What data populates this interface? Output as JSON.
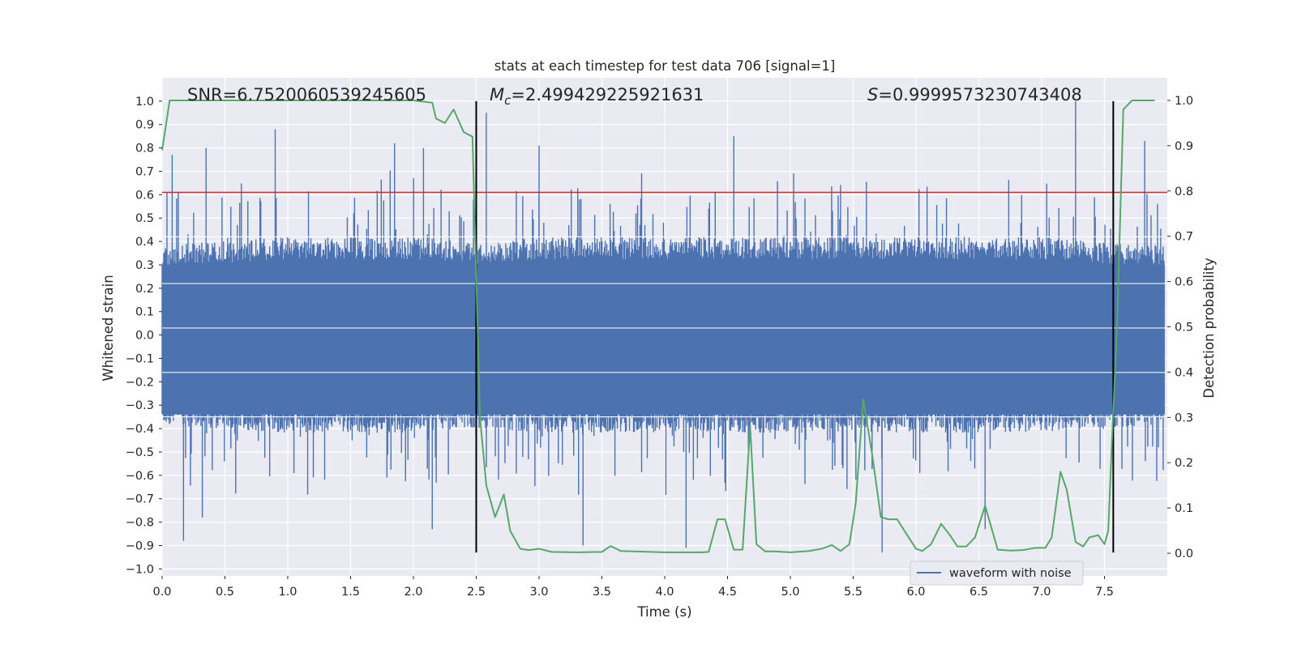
{
  "chart_data": {
    "type": "line",
    "title": "stats at each timestep for test data 706 [signal=1]",
    "xlabel": "Time (s)",
    "ylabel_left": "Whitened strain",
    "ylabel_right": "Detection probability",
    "xlim": [
      0.0,
      8.0
    ],
    "ylim_left": [
      -1.03,
      1.1
    ],
    "ylim_right": [
      -0.05,
      1.05
    ],
    "x_ticks": [
      "0.0",
      "0.5",
      "1.0",
      "1.5",
      "2.0",
      "2.5",
      "3.0",
      "3.5",
      "4.0",
      "4.5",
      "5.0",
      "5.5",
      "6.0",
      "6.5",
      "7.0",
      "7.5"
    ],
    "y_left_ticks": [
      "1.0",
      "0.9",
      "0.8",
      "0.7",
      "0.6",
      "0.5",
      "0.4",
      "0.3",
      "0.2",
      "0.1",
      "0.0",
      "−0.1",
      "−0.2",
      "−0.3",
      "−0.4",
      "−0.5",
      "−0.6",
      "−0.7",
      "−0.8",
      "−0.9",
      "−1.0"
    ],
    "y_right_ticks": [
      "1.0",
      "0.9",
      "0.8",
      "0.7",
      "0.6",
      "0.5",
      "0.4",
      "0.3",
      "0.2",
      "0.1",
      "0.0"
    ],
    "grid": true,
    "legend_position": "lower-right",
    "annotations": {
      "snr": "SNR=6.7520060539245605",
      "mc_symbol": "M",
      "mc_sub": "c",
      "mc_value": "=2.499429225921631",
      "s_symbol": "S",
      "s_value": "=0.9999573230743408"
    },
    "threshold": {
      "axis": "left",
      "y": 0.61,
      "color": "#d62728"
    },
    "vertical_markers": {
      "x": [
        2.5,
        7.57
      ],
      "y_range": [
        -0.93,
        1.0
      ],
      "color": "#000000"
    },
    "series": [
      {
        "name": "waveform with noise",
        "axis": "left",
        "color": "#4c72b0",
        "samples": 8000,
        "envelope": {
          "x": [
            0.0,
            1.0,
            2.0,
            2.5,
            3.0,
            4.0,
            5.0,
            6.0,
            7.0,
            7.5,
            8.0
          ],
          "upper_typical": [
            0.35,
            0.38,
            0.38,
            0.36,
            0.38,
            0.38,
            0.38,
            0.38,
            0.38,
            0.36,
            0.35
          ],
          "lower_typical": [
            -0.35,
            -0.38,
            -0.38,
            -0.36,
            -0.38,
            -0.38,
            -0.38,
            -0.38,
            -0.38,
            -0.36,
            -0.35
          ]
        },
        "peaks": [
          {
            "x": 0.08,
            "y": 0.77
          },
          {
            "x": 0.35,
            "y": 0.8
          },
          {
            "x": 0.9,
            "y": 0.88
          },
          {
            "x": 1.85,
            "y": 0.82
          },
          {
            "x": 2.08,
            "y": 0.8
          },
          {
            "x": 2.58,
            "y": 0.95
          },
          {
            "x": 3.0,
            "y": 0.81
          },
          {
            "x": 4.55,
            "y": 0.85
          },
          {
            "x": 7.27,
            "y": 1.0
          },
          {
            "x": 7.82,
            "y": 0.83
          },
          {
            "x": 0.17,
            "y": -0.88
          },
          {
            "x": 0.32,
            "y": -0.78
          },
          {
            "x": 2.15,
            "y": -0.83
          },
          {
            "x": 3.35,
            "y": -0.9
          },
          {
            "x": 5.73,
            "y": -0.93
          },
          {
            "x": 4.17,
            "y": -0.91
          },
          {
            "x": 6.55,
            "y": -0.83
          }
        ]
      },
      {
        "name": "",
        "axis": "right",
        "color": "#55a868",
        "x": [
          0.0,
          0.06,
          0.1,
          0.2,
          0.5,
          1.0,
          1.5,
          2.0,
          2.15,
          2.18,
          2.25,
          2.32,
          2.4,
          2.47,
          2.53,
          2.58,
          2.65,
          2.72,
          2.77,
          2.85,
          2.92,
          3.0,
          3.1,
          3.3,
          3.5,
          3.57,
          3.65,
          4.0,
          4.2,
          4.3,
          4.35,
          4.42,
          4.48,
          4.55,
          4.62,
          4.68,
          4.73,
          4.8,
          4.88,
          5.0,
          5.15,
          5.25,
          5.33,
          5.4,
          5.47,
          5.52,
          5.58,
          5.65,
          5.72,
          5.78,
          5.85,
          5.93,
          6.0,
          6.05,
          6.12,
          6.2,
          6.27,
          6.33,
          6.4,
          6.47,
          6.55,
          6.65,
          6.75,
          6.85,
          6.95,
          7.03,
          7.08,
          7.15,
          7.2,
          7.27,
          7.33,
          7.38,
          7.45,
          7.5,
          7.53,
          7.56,
          7.6,
          7.65,
          7.72,
          7.9
        ],
        "values": [
          0.89,
          1.0,
          1.0,
          1.0,
          1.0,
          1.0,
          1.0,
          1.0,
          0.995,
          0.96,
          0.95,
          0.98,
          0.93,
          0.92,
          0.3,
          0.15,
          0.08,
          0.13,
          0.05,
          0.01,
          0.007,
          0.01,
          0.003,
          0.002,
          0.003,
          0.016,
          0.005,
          0.002,
          0.002,
          0.002,
          0.003,
          0.075,
          0.075,
          0.008,
          0.008,
          0.28,
          0.02,
          0.004,
          0.004,
          0.002,
          0.005,
          0.01,
          0.018,
          0.005,
          0.02,
          0.11,
          0.34,
          0.22,
          0.08,
          0.075,
          0.075,
          0.04,
          0.01,
          0.005,
          0.02,
          0.065,
          0.04,
          0.015,
          0.015,
          0.035,
          0.105,
          0.008,
          0.006,
          0.007,
          0.012,
          0.012,
          0.035,
          0.18,
          0.14,
          0.025,
          0.015,
          0.035,
          0.04,
          0.02,
          0.05,
          0.25,
          0.5,
          0.98,
          1.0,
          1.0
        ]
      }
    ]
  }
}
